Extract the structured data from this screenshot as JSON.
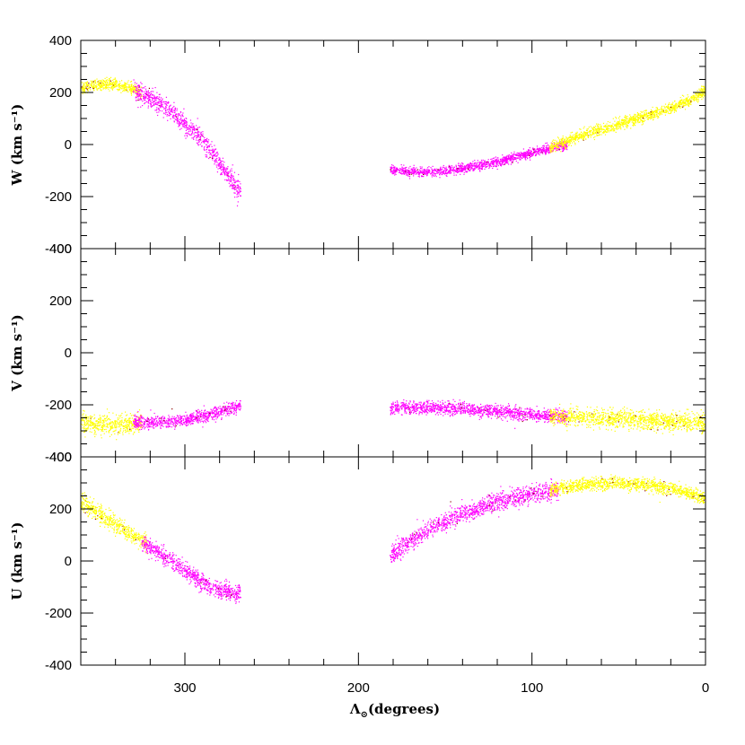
{
  "chart_data": {
    "type": "scatter",
    "shared_x": {
      "label": "Λ",
      "label_subscript": "⊙",
      "label_suffix": "(degrees)",
      "range": [
        360,
        0
      ],
      "ticks": [
        300,
        200,
        100,
        0
      ],
      "tick_labels": [
        "300",
        "200",
        "100",
        "0"
      ]
    },
    "colors": {
      "primary": "#ff00ff",
      "secondary": "#ffff00",
      "trace": "#8b0000"
    },
    "panels": [
      {
        "id": "W",
        "ylabel": "W (km s⁻¹)",
        "ylim": [
          -400,
          400
        ],
        "yticks": [
          400,
          200,
          0,
          -200,
          -400
        ],
        "ytick_labels": [
          "400",
          "200",
          "0",
          "-200",
          "-400"
        ],
        "segments": [
          {
            "series": "yellow",
            "x_range": [
              360,
              325
            ],
            "points": [
              [
                360,
                220
              ],
              [
                352,
                230
              ],
              [
                345,
                235
              ],
              [
                338,
                228
              ],
              [
                330,
                215
              ],
              [
                325,
                200
              ]
            ],
            "spread": 30
          },
          {
            "series": "magenta",
            "x_range": [
              330,
              268
            ],
            "points": [
              [
                330,
                205
              ],
              [
                320,
                180
              ],
              [
                310,
                140
              ],
              [
                300,
                80
              ],
              [
                290,
                20
              ],
              [
                280,
                -70
              ],
              [
                268,
                -190
              ]
            ],
            "spread": 55
          },
          {
            "series": "magenta",
            "x_range": [
              182,
              80
            ],
            "points": [
              [
                182,
                -95
              ],
              [
                165,
                -105
              ],
              [
                150,
                -100
              ],
              [
                135,
                -85
              ],
              [
                120,
                -65
              ],
              [
                100,
                -30
              ],
              [
                80,
                0
              ]
            ],
            "spread": 25
          },
          {
            "series": "yellow",
            "x_range": [
              90,
              0
            ],
            "points": [
              [
                90,
                -10
              ],
              [
                70,
                40
              ],
              [
                50,
                80
              ],
              [
                30,
                120
              ],
              [
                10,
                170
              ],
              [
                0,
                210
              ]
            ],
            "spread": 30
          }
        ]
      },
      {
        "id": "V",
        "ylabel": "V (km s⁻¹)",
        "ylim": [
          -400,
          400
        ],
        "yticks": [
          400,
          200,
          0,
          -200,
          -400
        ],
        "ytick_labels": [
          "400",
          "200",
          "0",
          "-200",
          "-400"
        ],
        "segments": [
          {
            "series": "yellow",
            "x_range": [
              360,
              325
            ],
            "points": [
              [
                360,
                -270
              ],
              [
                345,
                -275
              ],
              [
                335,
                -272
              ],
              [
                325,
                -265
              ]
            ],
            "spread": 55
          },
          {
            "series": "magenta",
            "x_range": [
              330,
              268
            ],
            "points": [
              [
                330,
                -265
              ],
              [
                315,
                -265
              ],
              [
                300,
                -255
              ],
              [
                285,
                -235
              ],
              [
                268,
                -200
              ]
            ],
            "spread": 35
          },
          {
            "series": "magenta",
            "x_range": [
              182,
              80
            ],
            "points": [
              [
                182,
                -210
              ],
              [
                160,
                -210
              ],
              [
                140,
                -215
              ],
              [
                120,
                -225
              ],
              [
                100,
                -235
              ],
              [
                80,
                -245
              ]
            ],
            "spread": 35
          },
          {
            "series": "yellow",
            "x_range": [
              90,
              0
            ],
            "points": [
              [
                90,
                -240
              ],
              [
                60,
                -250
              ],
              [
                30,
                -260
              ],
              [
                0,
                -270
              ]
            ],
            "spread": 50
          }
        ]
      },
      {
        "id": "U",
        "ylabel": "U (km s⁻¹)",
        "ylim": [
          -400,
          400
        ],
        "yticks": [
          400,
          200,
          0,
          -200,
          -400
        ],
        "ytick_labels": [
          "400",
          "200",
          "0",
          "-200",
          "-400"
        ],
        "segments": [
          {
            "series": "yellow",
            "x_range": [
              360,
              322
            ],
            "points": [
              [
                360,
                230
              ],
              [
                350,
                185
              ],
              [
                340,
                140
              ],
              [
                330,
                100
              ],
              [
                322,
                70
              ]
            ],
            "spread": 45
          },
          {
            "series": "magenta",
            "x_range": [
              325,
              268
            ],
            "points": [
              [
                325,
                70
              ],
              [
                315,
                30
              ],
              [
                305,
                -10
              ],
              [
                295,
                -60
              ],
              [
                285,
                -100
              ],
              [
                268,
                -125
              ]
            ],
            "spread": 45
          },
          {
            "series": "magenta",
            "x_range": [
              182,
              85
            ],
            "points": [
              [
                182,
                20
              ],
              [
                170,
                80
              ],
              [
                155,
                140
              ],
              [
                140,
                185
              ],
              [
                120,
                230
              ],
              [
                100,
                260
              ],
              [
                85,
                275
              ]
            ],
            "spread": 50
          },
          {
            "series": "yellow",
            "x_range": [
              90,
              0
            ],
            "points": [
              [
                90,
                275
              ],
              [
                70,
                295
              ],
              [
                50,
                300
              ],
              [
                30,
                290
              ],
              [
                15,
                275
              ],
              [
                0,
                240
              ]
            ],
            "spread": 35
          }
        ]
      }
    ]
  }
}
